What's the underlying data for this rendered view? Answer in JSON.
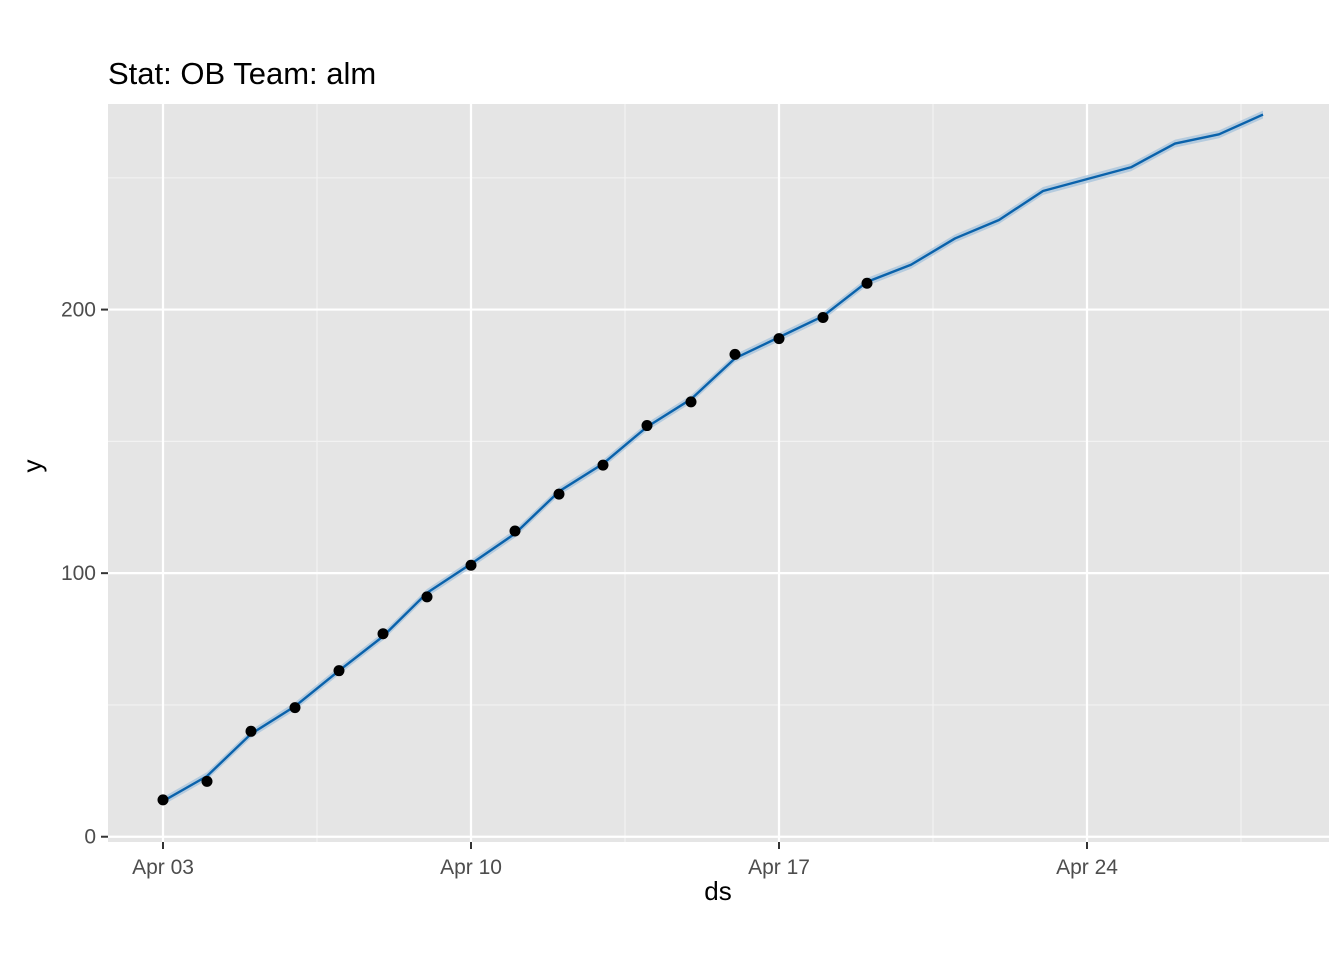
{
  "chart_data": {
    "type": "line",
    "title": "Stat: OB Team: alm",
    "xlabel": "ds",
    "ylabel": "y",
    "x_ticks": [
      "Apr 03",
      "Apr 10",
      "Apr 17",
      "Apr 24"
    ],
    "y_ticks": [
      "0",
      "100",
      "200"
    ],
    "ylim": [
      -2,
      278
    ],
    "xlim": [
      "2023-04-01T18:00",
      "2023-04-29T12:00"
    ],
    "grid": true,
    "legend": "none",
    "colors": {
      "panel_background": "#e5e5e5",
      "grid_major": "#ffffff",
      "grid_minor": "#f2f2f2",
      "forecast_line": "#0a62ab",
      "uncertainty_band": "#a9c4dc",
      "observed_points": "#000000",
      "tick_mark": "#333333",
      "tick_label": "#4d4d4d"
    },
    "series": [
      {
        "kind": "observed_points",
        "x": [
          "2023-04-03",
          "2023-04-04",
          "2023-04-05",
          "2023-04-06",
          "2023-04-07",
          "2023-04-08",
          "2023-04-09",
          "2023-04-10",
          "2023-04-11",
          "2023-04-12",
          "2023-04-13",
          "2023-04-14",
          "2023-04-15",
          "2023-04-16",
          "2023-04-17",
          "2023-04-18",
          "2023-04-19"
        ],
        "values": [
          14,
          21,
          40,
          49,
          63,
          77,
          91,
          103,
          116,
          130,
          141,
          156,
          165,
          183,
          189,
          197,
          210
        ]
      },
      {
        "kind": "forecast_line",
        "x": [
          "2023-04-03",
          "2023-04-04",
          "2023-04-05",
          "2023-04-06",
          "2023-04-07",
          "2023-04-08",
          "2023-04-09",
          "2023-04-10",
          "2023-04-11",
          "2023-04-12",
          "2023-04-13",
          "2023-04-14",
          "2023-04-15",
          "2023-04-16",
          "2023-04-17",
          "2023-04-18",
          "2023-04-19",
          "2023-04-20",
          "2023-04-21",
          "2023-04-22",
          "2023-04-23",
          "2023-04-24",
          "2023-04-25",
          "2023-04-26",
          "2023-04-27",
          "2023-04-28"
        ],
        "values": [
          13.5,
          23,
          39,
          49.5,
          63,
          76,
          92.5,
          103.5,
          115,
          131,
          141.5,
          155.5,
          166,
          181.5,
          189.5,
          197.5,
          210.5,
          217,
          227,
          234,
          245,
          249.5,
          254,
          263,
          266.5,
          274
        ],
        "band": 1.5
      }
    ]
  }
}
